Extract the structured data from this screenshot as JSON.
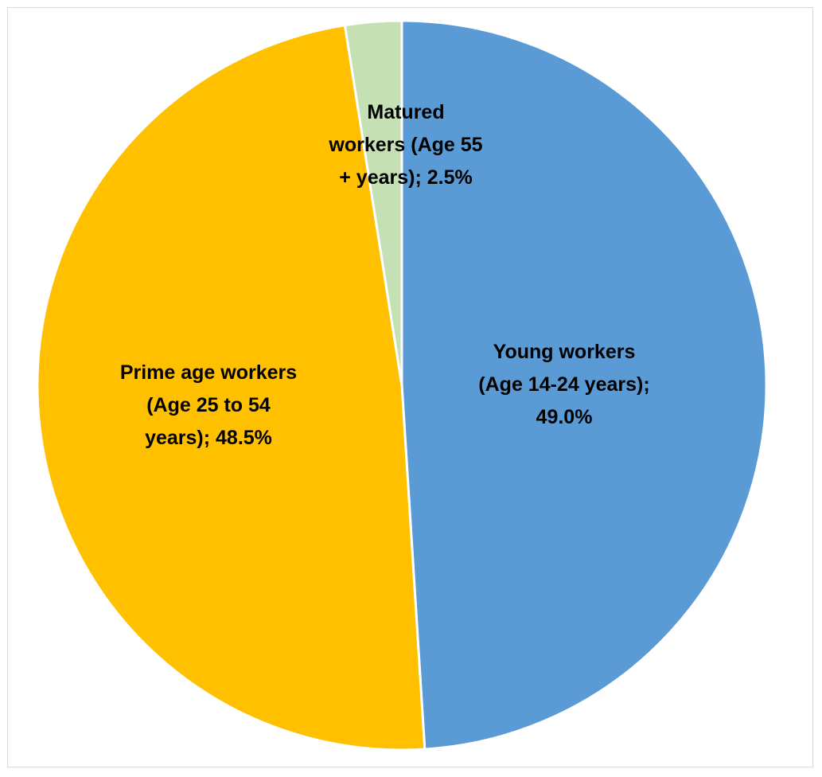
{
  "chart_data": {
    "type": "pie",
    "title": "",
    "slices": [
      {
        "name": "Young workers (Age 14-24 years)",
        "value": 49.0,
        "label_lines": [
          "Young workers",
          "(Age 14-24 years);",
          "49.0%"
        ],
        "color": "#5b9bd5"
      },
      {
        "name": "Prime age workers (Age 25 to 54 years)",
        "value": 48.5,
        "label_lines": [
          "Prime age workers",
          "(Age 25 to 54",
          "years); 48.5%"
        ],
        "color": "#ffc000"
      },
      {
        "name": "Matured workers (Age 55 + years)",
        "value": 2.5,
        "label_lines": [
          "Matured",
          "workers (Age 55",
          "+ years); 2.5%"
        ],
        "color": "#c5e0b4"
      }
    ],
    "start_angle": "12 o'clock",
    "direction": "clockwise",
    "slice_border_color": "#ffffff",
    "legend": "none",
    "data_labels": "inside slices, bold"
  }
}
